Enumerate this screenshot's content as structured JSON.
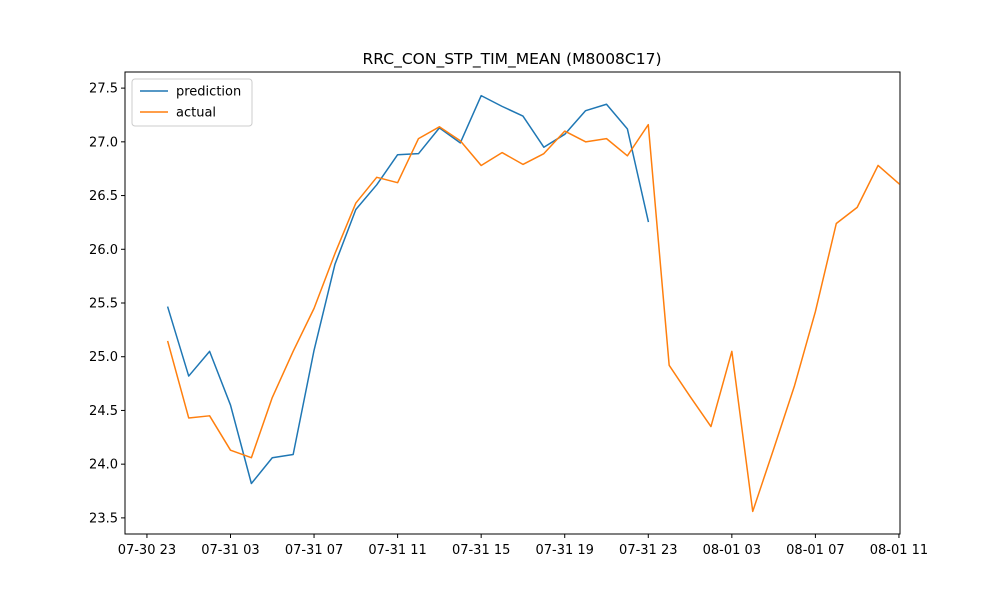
{
  "chart_data": {
    "type": "line",
    "title": "RRC_CON_STP_TIM_MEAN (M8008C17)",
    "xlabel": "",
    "ylabel": "",
    "x_start": "07-30 23",
    "x_step_hours": 1,
    "xlim_hours": [
      -1.05,
      36.05
    ],
    "ylim": [
      23.35,
      27.65
    ],
    "x_ticks": [
      {
        "hours": 0,
        "label": "07-30 23"
      },
      {
        "hours": 4,
        "label": "07-31 03"
      },
      {
        "hours": 8,
        "label": "07-31 07"
      },
      {
        "hours": 12,
        "label": "07-31 11"
      },
      {
        "hours": 16,
        "label": "07-31 15"
      },
      {
        "hours": 20,
        "label": "07-31 19"
      },
      {
        "hours": 24,
        "label": "07-31 23"
      },
      {
        "hours": 28,
        "label": "08-01 03"
      },
      {
        "hours": 32,
        "label": "08-01 07"
      },
      {
        "hours": 36,
        "label": "08-01 11"
      }
    ],
    "y_ticks": [
      {
        "value": 23.5,
        "label": "23.5"
      },
      {
        "value": 24.0,
        "label": "24.0"
      },
      {
        "value": 24.5,
        "label": "24.5"
      },
      {
        "value": 25.0,
        "label": "25.0"
      },
      {
        "value": 25.5,
        "label": "25.5"
      },
      {
        "value": 26.0,
        "label": "26.0"
      },
      {
        "value": 26.5,
        "label": "26.5"
      },
      {
        "value": 27.0,
        "label": "27.0"
      },
      {
        "value": 27.5,
        "label": "27.5"
      }
    ],
    "grid": false,
    "legend_position": "top-left",
    "series": [
      {
        "name": "prediction",
        "color": "#1f77b4",
        "x_hours": [
          1,
          2,
          3,
          4,
          5,
          6,
          7,
          8,
          9,
          10,
          11,
          12,
          13,
          14,
          15,
          16,
          17,
          18,
          19,
          20,
          21,
          22,
          23,
          24
        ],
        "values": [
          25.46,
          24.82,
          25.05,
          24.55,
          23.82,
          24.06,
          24.09,
          25.06,
          25.86,
          26.37,
          26.6,
          26.88,
          26.89,
          27.13,
          26.99,
          27.43,
          27.33,
          27.24,
          26.95,
          27.07,
          27.29,
          27.35,
          27.12,
          26.26
        ]
      },
      {
        "name": "actual",
        "color": "#ff7f0e",
        "x_hours": [
          1,
          2,
          3,
          4,
          5,
          6,
          7,
          8,
          9,
          10,
          11,
          12,
          13,
          14,
          15,
          16,
          17,
          18,
          19,
          20,
          21,
          22,
          23,
          24,
          25,
          26,
          27,
          28,
          29,
          30,
          31,
          32,
          33,
          34,
          35,
          36
        ],
        "values": [
          25.14,
          24.43,
          24.45,
          24.13,
          24.06,
          24.62,
          25.05,
          25.45,
          25.96,
          26.43,
          26.67,
          26.62,
          27.03,
          27.14,
          27.01,
          26.78,
          26.9,
          26.79,
          26.89,
          27.1,
          27.0,
          27.03,
          26.87,
          27.16,
          24.92,
          24.63,
          24.35,
          25.05,
          23.56,
          24.14,
          24.73,
          25.42,
          26.24,
          26.39,
          26.78,
          26.61
        ]
      }
    ]
  }
}
